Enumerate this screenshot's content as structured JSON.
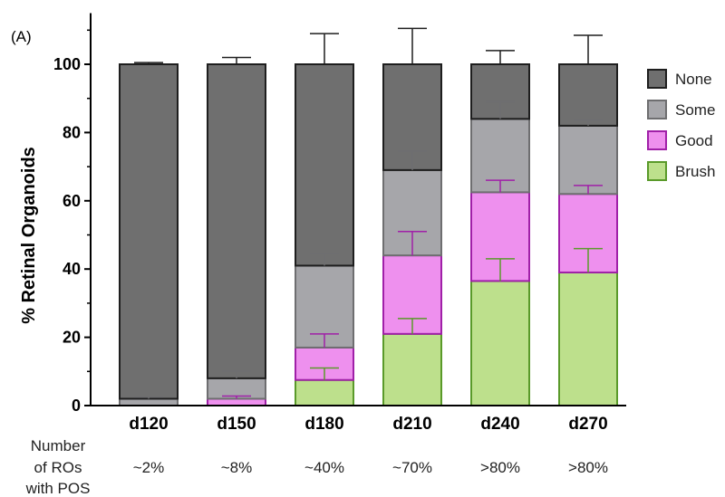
{
  "chart_data": {
    "type": "bar",
    "stacked": true,
    "panel_label": "(A)",
    "ylabel": "% Retinal Organoids",
    "xlabel": "",
    "ylim": [
      0,
      115
    ],
    "yticks": [
      0,
      20,
      40,
      60,
      80,
      100
    ],
    "categories": [
      "d120",
      "d150",
      "d180",
      "d210",
      "d240",
      "d270"
    ],
    "series": [
      {
        "name": "Brush",
        "color": "#bde08c",
        "stroke": "#5a9a2a",
        "values": [
          0,
          0,
          7.5,
          21,
          36.5,
          39
        ],
        "errors": [
          0,
          0,
          3.5,
          4.5,
          6.5,
          7
        ]
      },
      {
        "name": "Good",
        "color": "#ee90ee",
        "stroke": "#a020a8",
        "values": [
          0,
          2,
          9.5,
          23,
          26,
          23
        ],
        "errors": [
          0,
          0.8,
          4,
          7,
          3.5,
          2.5
        ]
      },
      {
        "name": "Some",
        "color": "#a6a6aa",
        "stroke": "#6e6e70",
        "values": [
          2,
          6,
          24,
          25,
          21.5,
          20
        ],
        "errors": [
          0.5,
          2,
          3.5,
          5.5,
          5,
          1.5
        ]
      },
      {
        "name": "None",
        "color": "#6f6f6f",
        "stroke": "#1e1e1e",
        "values": [
          98,
          92,
          59,
          31,
          16,
          18
        ],
        "errors": [
          0.5,
          2,
          9,
          10.5,
          4,
          8.5
        ]
      }
    ],
    "legend_order": [
      "None",
      "Some",
      "Good",
      "Brush"
    ],
    "legend_position": "right",
    "footer": {
      "label_lines": [
        "Number",
        "of ROs",
        "with POS"
      ],
      "values": [
        "~2%",
        "~8%",
        "~40%",
        "~70%",
        ">80%",
        ">80%"
      ]
    }
  }
}
